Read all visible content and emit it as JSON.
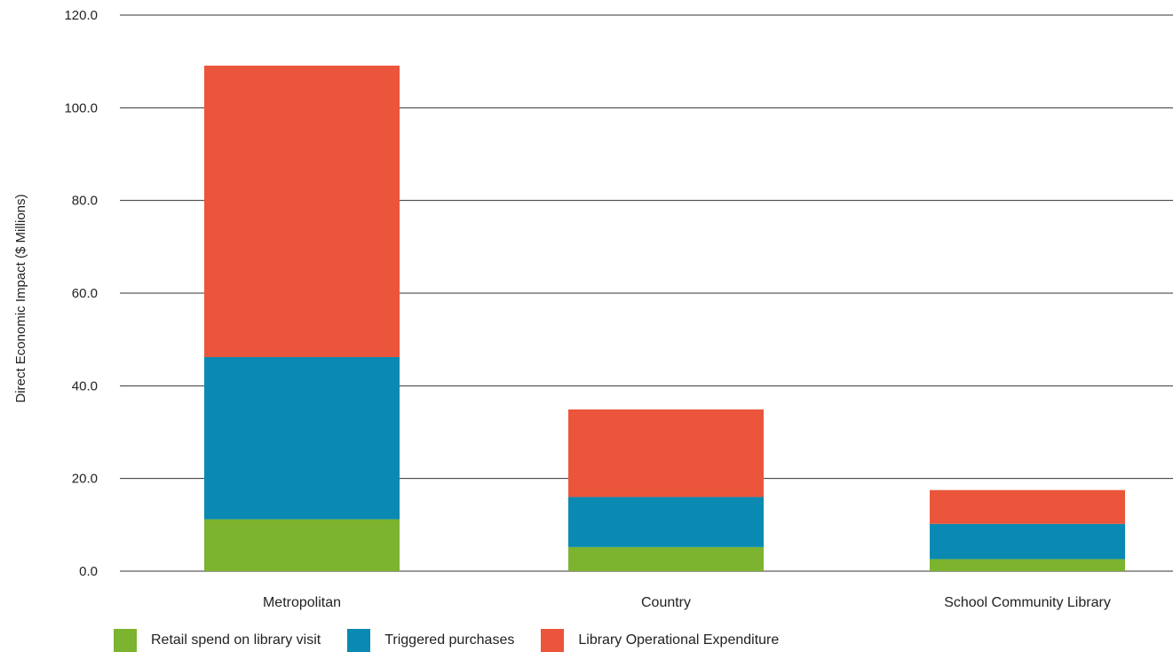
{
  "chart_data": {
    "type": "bar",
    "stacked": true,
    "title": "",
    "xlabel": "",
    "ylabel": "Direct Economic Impact ($ Millions)",
    "ylim": [
      0,
      120
    ],
    "yticks": [
      "0.0",
      "20.0",
      "40.0",
      "60.0",
      "80.0",
      "100.0",
      "120.0"
    ],
    "categories": [
      "Metropolitan",
      "Country",
      "School Community Library"
    ],
    "series": [
      {
        "name": "Retail spend on library visit",
        "color": "#7cb32f",
        "values": [
          11.2,
          5.2,
          2.6
        ]
      },
      {
        "name": "Triggered purchases",
        "color": "#0a8ab2",
        "values": [
          35.0,
          10.8,
          7.6
        ]
      },
      {
        "name": "Library Operational Expenditure",
        "color": "#eb553b",
        "values": [
          62.9,
          18.9,
          7.3
        ]
      }
    ],
    "grid": true,
    "legend_position": "bottom"
  }
}
